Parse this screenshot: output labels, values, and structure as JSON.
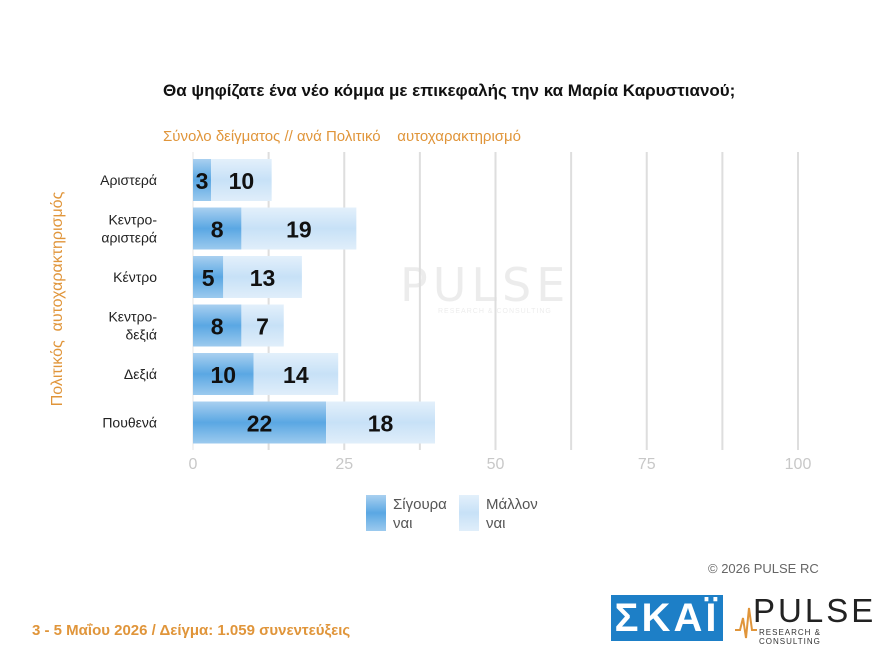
{
  "title": "Θα ψηφίζατε ένα νέο κόμμα με επικεφαλής την κα Μαρία Καρυστιανού;",
  "subtitle": "Σύνολο δείγματος // ανά Πολιτικό    αυτοχαρακτηρισμό",
  "yaxis_label": "Πολιτικός  αυτοχαρακτηρισμός",
  "watermark": {
    "word": "PULSE",
    "sub": "RESEARCH & CONSULTING"
  },
  "legend": {
    "sure": "Σίγουρα\nναι",
    "maybe": "Μάλλον\nναι"
  },
  "copyright": "©  2026  PULSE RC",
  "footer": "3 - 5  Μαΐου 2026  /  Δείγμα:  1.059 συνεντεύξεις",
  "logos": {
    "skai": "ΣΚΑΪ",
    "pulse": "PULSE",
    "pulse_sub": "RESEARCH & CONSULTING"
  },
  "colors": {
    "sure": "#5aa7e3",
    "maybe": "#c7e1f7",
    "accent": "#e0953a",
    "skai": "#1d7fc7"
  },
  "chart_data": {
    "type": "bar",
    "orientation": "horizontal",
    "stacked": true,
    "categories": [
      "Αριστερά",
      "Κεντρο-\nαριστερά",
      "Κέντρο",
      "Κεντρο-\nδεξιά",
      "Δεξιά",
      "Πουθενά"
    ],
    "series": [
      {
        "name": "Σίγουρα ναι",
        "values": [
          3,
          8,
          5,
          8,
          10,
          22
        ]
      },
      {
        "name": "Μάλλον ναι",
        "values": [
          10,
          19,
          13,
          7,
          14,
          18
        ]
      }
    ],
    "xlim": [
      0,
      100
    ],
    "xticks": [
      0,
      25,
      50,
      75,
      100
    ],
    "grid": true,
    "legend_position": "bottom"
  }
}
